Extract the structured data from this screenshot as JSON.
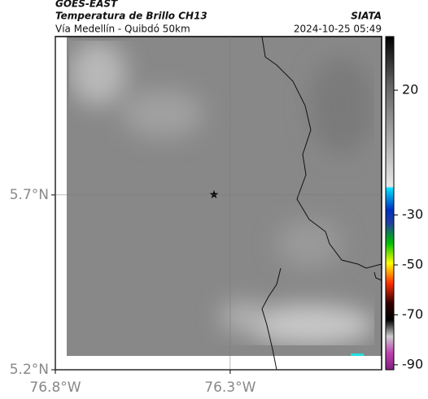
{
  "header": {
    "source": "GOES-EAST",
    "title": "Temperatura de Brillo CH13",
    "region": "Vía Medellín - Quibdó 50km",
    "org": "SIATA",
    "datetime": "2024-10-25 05:49"
  },
  "map": {
    "lat_lim": [
      5.2,
      6.153
    ],
    "lon_lim": [
      -76.8,
      -75.867
    ],
    "lat_ticks": [
      {
        "value": 5.7,
        "label": "5.7°N"
      },
      {
        "value": 5.2,
        "label": "5.2°N"
      }
    ],
    "lon_ticks": [
      {
        "value": -76.8,
        "label": "76.8°W"
      },
      {
        "value": -76.3,
        "label": "76.3°W"
      }
    ],
    "colorbar": {
      "lim": [
        -92,
        41.5
      ],
      "ticks": [
        20,
        -30,
        -50,
        -70,
        -90
      ]
    }
  }
}
